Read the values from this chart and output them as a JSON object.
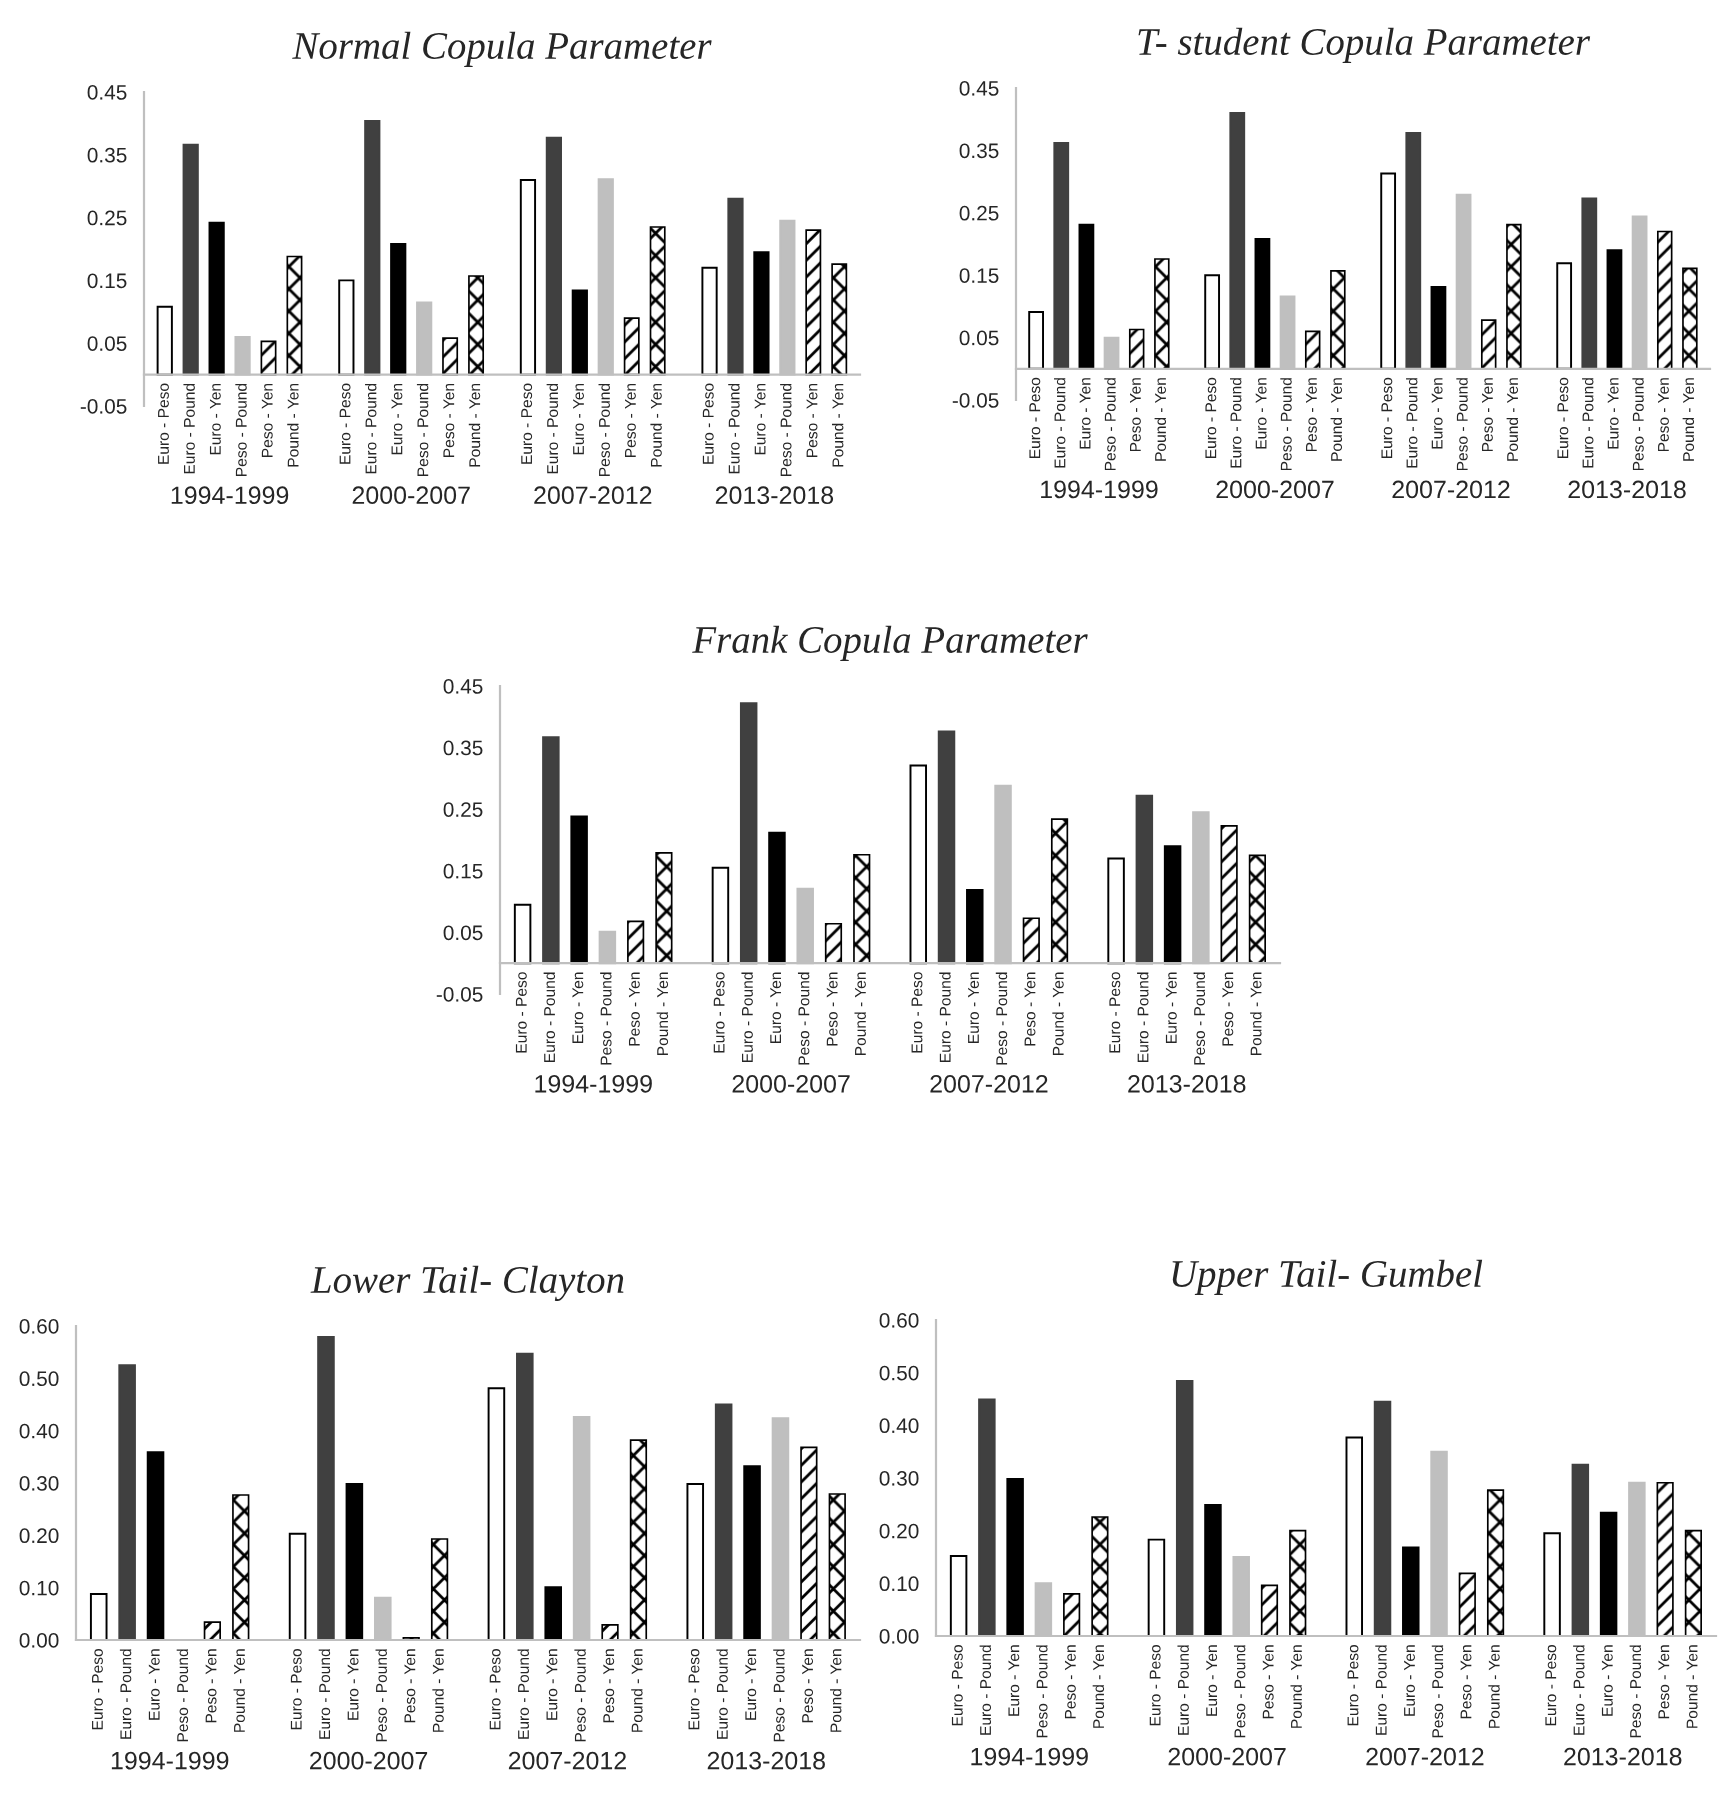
{
  "chart_data": [
    {
      "type": "bar",
      "title": "Normal Copula Parameter",
      "categories": [
        "1994-1999",
        "2000-2007",
        "2007-2012",
        "2013-2018"
      ],
      "ylim": [
        -0.05,
        0.45
      ],
      "yticks": [
        -0.05,
        0.05,
        0.15,
        0.25,
        0.35,
        0.45
      ],
      "series": [
        {
          "name": "Euro - Peso",
          "color": "#ffffff",
          "values": [
            0.108,
            0.15,
            0.31,
            0.17
          ]
        },
        {
          "name": "Euro - Pound",
          "color": "#404040",
          "values": [
            0.366,
            0.404,
            0.377,
            0.28
          ]
        },
        {
          "name": "Euro - Yen",
          "color": "#000000",
          "values": [
            0.242,
            0.208,
            0.134,
            0.195
          ]
        },
        {
          "name": "Peso - Pound",
          "color": "#bfbfbf",
          "values": [
            0.06,
            0.115,
            0.311,
            0.245
          ]
        },
        {
          "name": "Peso - Yen",
          "color": "#000000",
          "values": [
            0.053,
            0.058,
            0.09,
            0.23
          ]
        },
        {
          "name": "Pound - Yen",
          "color": "#000000",
          "values": [
            0.188,
            0.157,
            0.235,
            0.176
          ]
        }
      ]
    },
    {
      "type": "bar",
      "title": "T- student Copula Parameter",
      "categories": [
        "1994-1999",
        "2000-2007",
        "2007-2012",
        "2013-2018"
      ],
      "ylim": [
        -0.05,
        0.45
      ],
      "yticks": [
        -0.05,
        0.05,
        0.15,
        0.25,
        0.35,
        0.45
      ],
      "series": [
        {
          "name": "Euro - Peso",
          "color": "#ffffff",
          "values": [
            0.091,
            0.15,
            0.313,
            0.169
          ]
        },
        {
          "name": "Euro - Pound",
          "color": "#404040",
          "values": [
            0.362,
            0.41,
            0.378,
            0.273
          ]
        },
        {
          "name": "Euro - Yen",
          "color": "#000000",
          "values": [
            0.231,
            0.208,
            0.131,
            0.19
          ]
        },
        {
          "name": "Peso - Pound",
          "color": "#bfbfbf",
          "values": [
            0.05,
            0.116,
            0.279,
            0.244
          ]
        },
        {
          "name": "Peso - Yen",
          "color": "#000000",
          "values": [
            0.063,
            0.06,
            0.078,
            0.22
          ]
        },
        {
          "name": "Pound - Yen",
          "color": "#000000",
          "values": [
            0.176,
            0.157,
            0.231,
            0.161
          ]
        }
      ]
    },
    {
      "type": "bar",
      "title": "Frank Copula Parameter",
      "categories": [
        "1994-1999",
        "2000-2007",
        "2007-2012",
        "2013-2018"
      ],
      "ylim": [
        -0.05,
        0.45
      ],
      "yticks": [
        -0.05,
        0.05,
        0.15,
        0.25,
        0.35,
        0.45
      ],
      "series": [
        {
          "name": "Euro - Peso",
          "color": "#ffffff",
          "values": [
            0.095,
            0.155,
            0.321,
            0.17
          ]
        },
        {
          "name": "Euro - Pound",
          "color": "#404040",
          "values": [
            0.367,
            0.422,
            0.376,
            0.272
          ]
        },
        {
          "name": "Euro - Yen",
          "color": "#000000",
          "values": [
            0.238,
            0.212,
            0.119,
            0.19
          ]
        },
        {
          "name": "Peso - Pound",
          "color": "#bfbfbf",
          "values": [
            0.051,
            0.121,
            0.288,
            0.245
          ]
        },
        {
          "name": "Peso - Yen",
          "color": "#000000",
          "values": [
            0.068,
            0.064,
            0.073,
            0.223
          ]
        },
        {
          "name": "Pound - Yen",
          "color": "#000000",
          "values": [
            0.179,
            0.176,
            0.234,
            0.175
          ]
        }
      ]
    },
    {
      "type": "bar",
      "title": "Lower Tail- Clayton",
      "categories": [
        "1994-1999",
        "2000-2007",
        "2007-2012",
        "2013-2018"
      ],
      "ylim": [
        0,
        0.6
      ],
      "yticks": [
        {
          "value": 0,
          "label": "0.00"
        },
        {
          "value": 0.1,
          "label": "0.10"
        },
        {
          "value": 0.2,
          "label": "0.20"
        },
        {
          "value": 0.3,
          "label": "0.30"
        },
        {
          "value": 0.4,
          "label": "0.40"
        },
        {
          "value": 0.5,
          "label": "0.50"
        },
        {
          "value": 0.6,
          "label": "0.60"
        }
      ],
      "series": [
        {
          "name": "Euro - Peso",
          "color": "#ffffff",
          "values": [
            0.088,
            0.203,
            0.481,
            0.298
          ]
        },
        {
          "name": "Euro - Pound",
          "color": "#404040",
          "values": [
            0.525,
            0.579,
            0.547,
            0.45
          ]
        },
        {
          "name": "Euro - Yen",
          "color": "#000000",
          "values": [
            0.359,
            0.298,
            0.101,
            0.332
          ]
        },
        {
          "name": "Peso - Pound",
          "color": "#bfbfbf",
          "values": [
            0.0,
            0.081,
            0.426,
            0.424
          ]
        },
        {
          "name": "Peso - Yen",
          "color": "#000000",
          "values": [
            0.034,
            0.004,
            0.029,
            0.368
          ]
        },
        {
          "name": "Pound - Yen",
          "color": "#000000",
          "values": [
            0.277,
            0.193,
            0.382,
            0.279
          ]
        }
      ]
    },
    {
      "type": "bar",
      "title": "Upper Tail- Gumbel",
      "categories": [
        "1994-1999",
        "2000-2007",
        "2007-2012",
        "2013-2018"
      ],
      "ylim": [
        0,
        0.6
      ],
      "yticks": [
        {
          "value": 0,
          "label": "0.00"
        },
        {
          "value": 0.1,
          "label": "0.10"
        },
        {
          "value": 0.2,
          "label": "0.20"
        },
        {
          "value": 0.3,
          "label": "0.30"
        },
        {
          "value": 0.4,
          "label": "0.40"
        },
        {
          "value": 0.5,
          "label": "0.50"
        },
        {
          "value": 0.6,
          "label": "0.60"
        }
      ],
      "series": [
        {
          "name": "Euro - Peso",
          "color": "#ffffff",
          "values": [
            0.152,
            0.183,
            0.377,
            0.195
          ]
        },
        {
          "name": "Euro - Pound",
          "color": "#404040",
          "values": [
            0.449,
            0.484,
            0.445,
            0.325
          ]
        },
        {
          "name": "Euro - Yen",
          "color": "#000000",
          "values": [
            0.298,
            0.249,
            0.168,
            0.234
          ]
        },
        {
          "name": "Peso - Pound",
          "color": "#bfbfbf",
          "values": [
            0.1,
            0.15,
            0.35,
            0.291
          ]
        },
        {
          "name": "Peso - Yen",
          "color": "#000000",
          "values": [
            0.08,
            0.096,
            0.119,
            0.291
          ]
        },
        {
          "name": "Pound - Yen",
          "color": "#000000",
          "values": [
            0.226,
            0.2,
            0.277,
            0.2
          ]
        }
      ]
    }
  ]
}
